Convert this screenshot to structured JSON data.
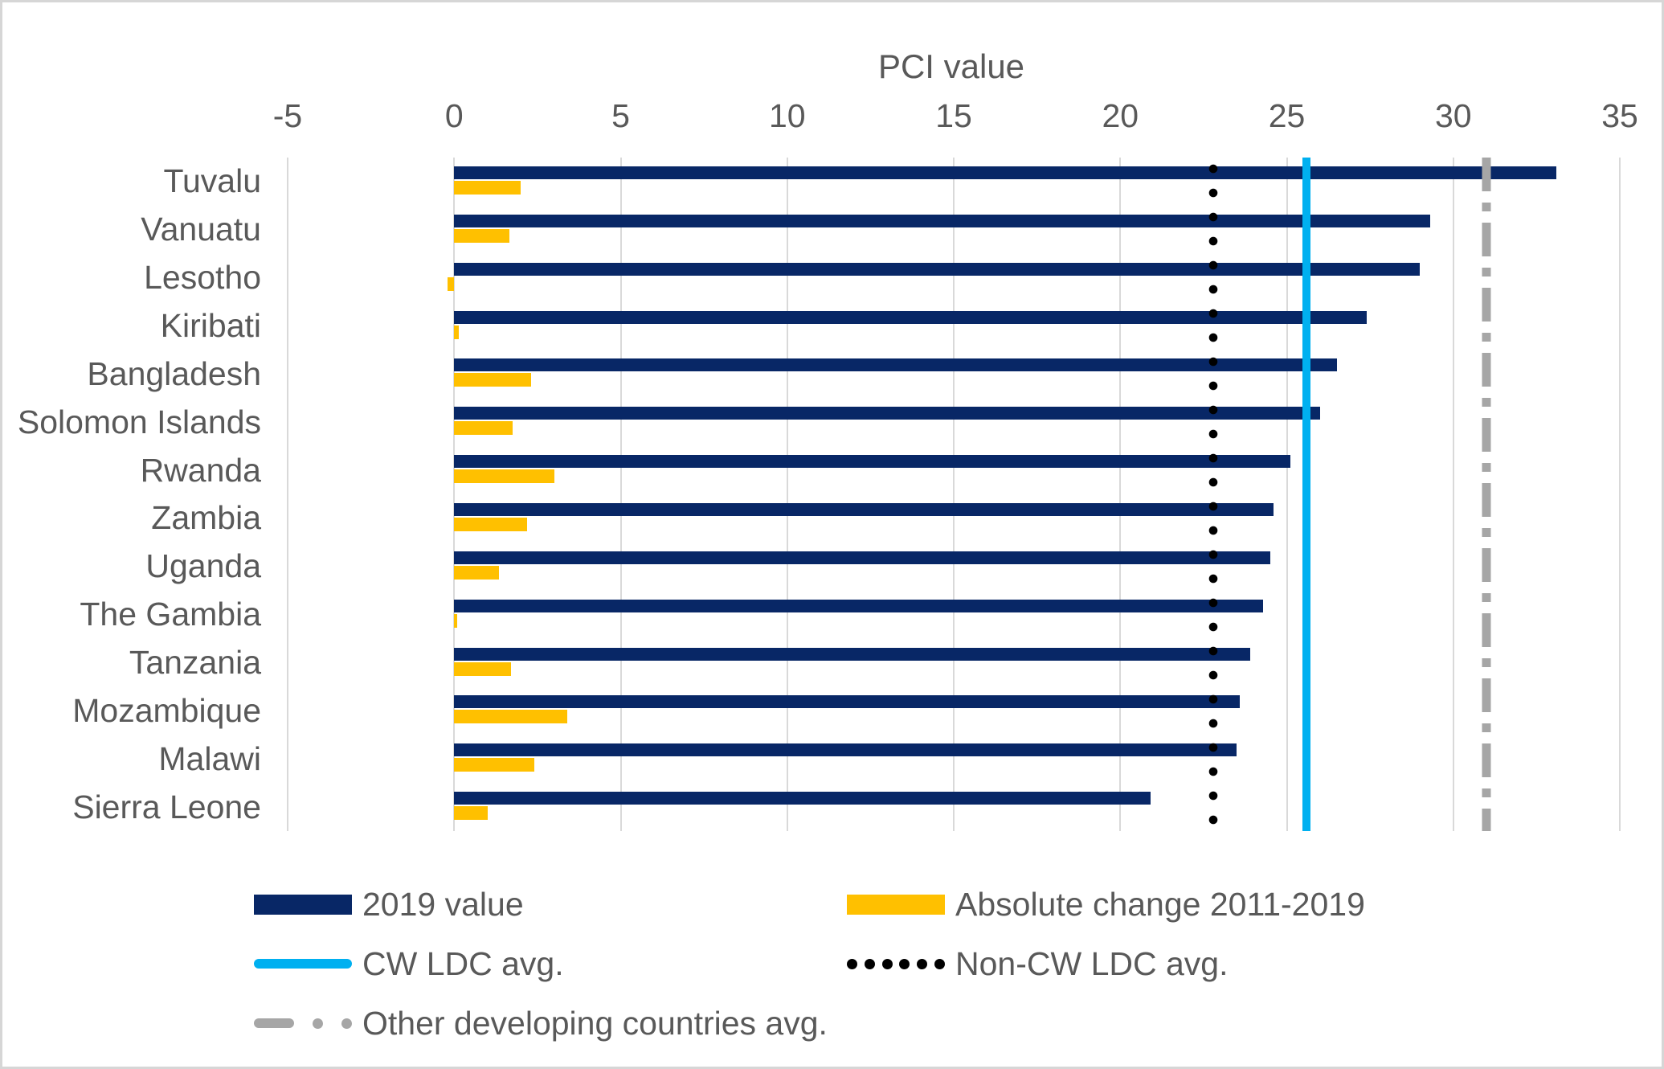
{
  "title": "PCI value",
  "chart_data": {
    "type": "bar",
    "orientation": "horizontal",
    "title": "PCI value",
    "xlabel": "PCI value",
    "ylabel": "",
    "xlim": [
      -5,
      35
    ],
    "xticks": [
      -5,
      0,
      5,
      10,
      15,
      20,
      25,
      30,
      35
    ],
    "grid": "vertical",
    "legend_position": "bottom",
    "categories": [
      "Tuvalu",
      "Vanuatu",
      "Lesotho",
      "Kiribati",
      "Bangladesh",
      "Solomon Islands",
      "Rwanda",
      "Zambia",
      "Uganda",
      "The Gambia",
      "Tanzania",
      "Mozambique",
      "Malawi",
      "Sierra Leone"
    ],
    "series": [
      {
        "name": "2019 value",
        "color": "#082766",
        "values": [
          33.1,
          29.3,
          29.0,
          27.4,
          26.5,
          26.0,
          25.1,
          24.6,
          24.5,
          24.3,
          23.9,
          23.6,
          23.5,
          20.9
        ]
      },
      {
        "name": "Absolute change 2011-2019",
        "color": "#ffc000",
        "values": [
          2.0,
          1.65,
          -0.2,
          0.15,
          2.3,
          1.75,
          3.0,
          2.2,
          1.35,
          0.1,
          1.7,
          3.4,
          2.4,
          1.0
        ]
      }
    ],
    "reference_lines": [
      {
        "name": "CW LDC avg.",
        "value": 25.6,
        "style": "solid",
        "color": "#00b0f0"
      },
      {
        "name": "Non-CW LDC avg.",
        "value": 22.8,
        "style": "dotted",
        "color": "#000000"
      },
      {
        "name": "Other developing countries avg.",
        "value": 31.0,
        "style": "dash-dot",
        "color": "#a6a6a6"
      }
    ]
  },
  "legend": {
    "items": [
      {
        "label": "2019 value",
        "swatch": "navy-rect"
      },
      {
        "label": "Absolute change 2011-2019",
        "swatch": "gold-rect"
      },
      {
        "label": "CW LDC avg.",
        "swatch": "blue-line"
      },
      {
        "label": "Non-CW LDC avg.",
        "swatch": "black-dots"
      },
      {
        "label": "Other developing countries avg.",
        "swatch": "gray-dash-dot"
      }
    ]
  },
  "colors": {
    "bar_2019": "#082766",
    "bar_change": "#ffc000",
    "cw_ldc_line": "#00b0f0",
    "non_cw_ldc_line": "#000000",
    "other_developing_line": "#a6a6a6",
    "gridline": "#d9d9d9",
    "text": "#595959",
    "border": "#d6d6d6"
  }
}
